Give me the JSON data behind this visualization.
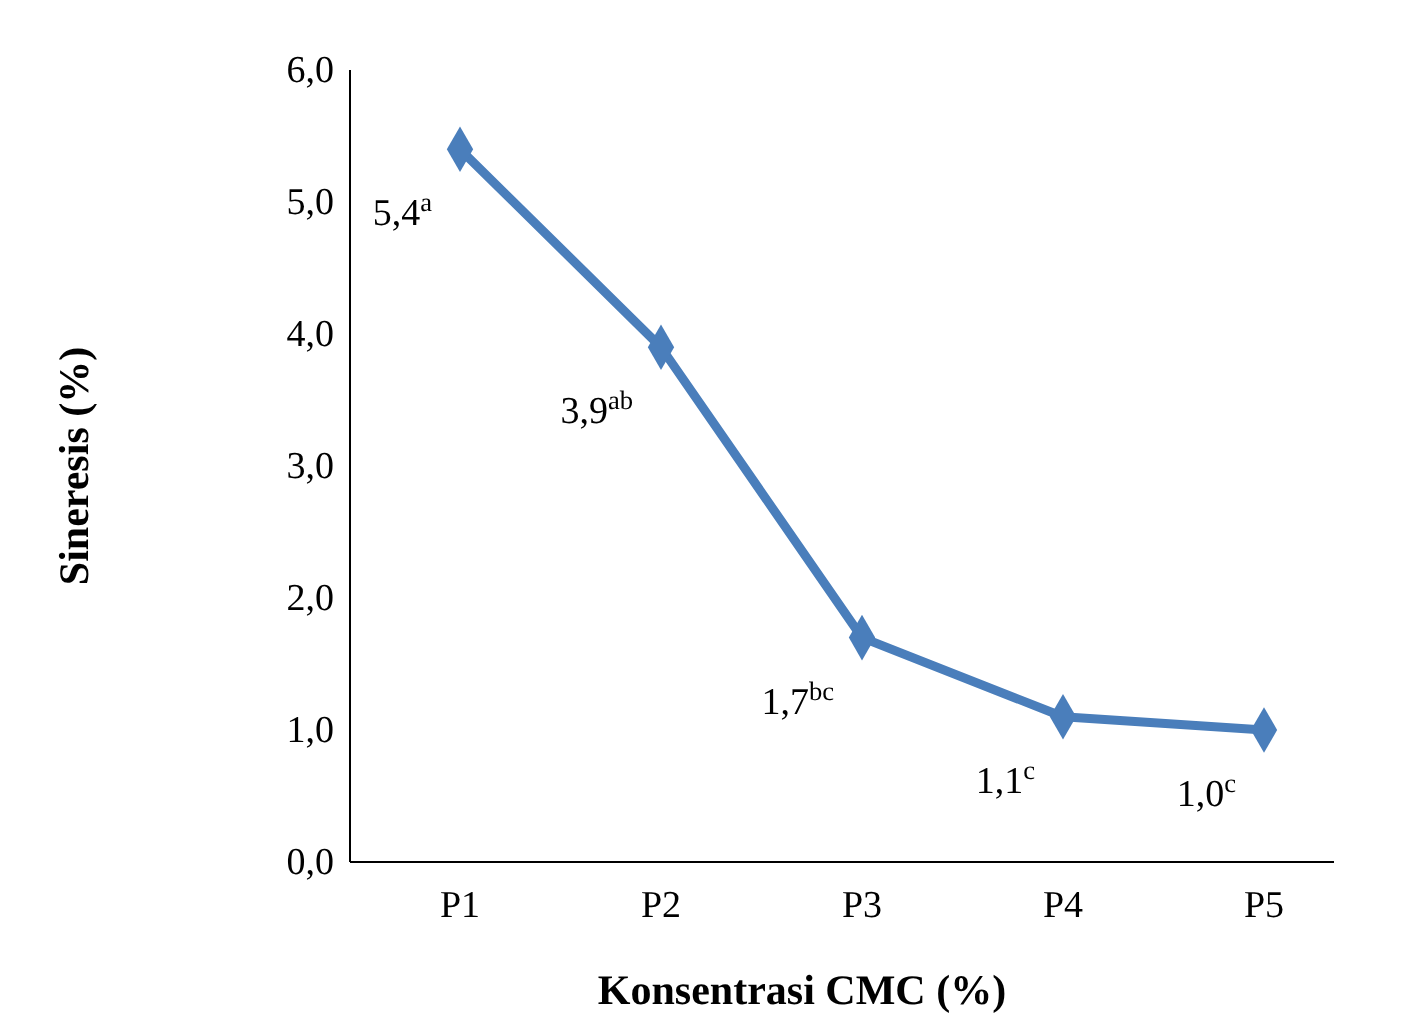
{
  "chart_data": {
    "type": "line",
    "xlabel": "Konsentrasi CMC (%)",
    "ylabel": "Sineresis (%)",
    "categories": [
      "P1",
      "P2",
      "P3",
      "P4",
      "P5"
    ],
    "series": [
      {
        "color": "#4a7ebb",
        "values": [
          5.4,
          3.9,
          1.7,
          1.1,
          1.0
        ]
      }
    ],
    "value_labels": [
      "5,4$^{a}$",
      "3,9$^{ab}$",
      "1,7$^{bc}$",
      "1,1$^{c}$",
      "1,0$^{c}$"
    ],
    "ylim": [
      0,
      6
    ],
    "yticks": [
      {
        "value": 0,
        "label": "0,0"
      },
      {
        "value": 1,
        "label": "1,0"
      },
      {
        "value": 2,
        "label": "2,0"
      },
      {
        "value": 3,
        "label": "3,0"
      },
      {
        "value": 4,
        "label": "4,0"
      },
      {
        "value": 5,
        "label": "5,0"
      },
      {
        "value": 6,
        "label": "6,0"
      }
    ],
    "grid": false,
    "marker": "diamond",
    "line_style": "solid"
  }
}
